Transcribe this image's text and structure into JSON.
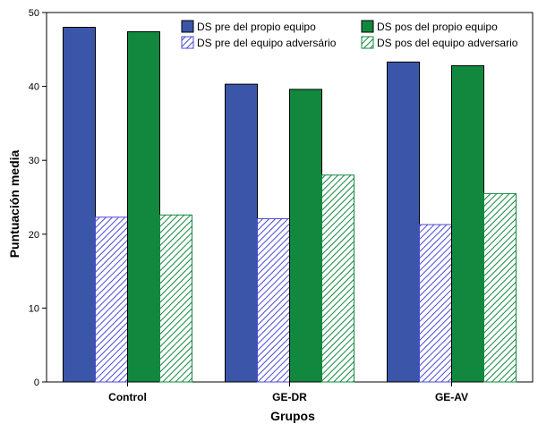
{
  "chart_data": {
    "type": "bar",
    "title": "",
    "xlabel": "Grupos",
    "ylabel": "Puntuación media",
    "ylim": [
      0,
      50
    ],
    "yticks": [
      0,
      10,
      20,
      30,
      40,
      50
    ],
    "grid": false,
    "legend_position": "top-right",
    "categories": [
      "Control",
      "GE-DR",
      "GE-AV"
    ],
    "series": [
      {
        "name": "DS pre del propio equipo",
        "values": [
          48.0,
          40.3,
          43.3
        ],
        "color": "#3b55a8",
        "pattern": "solid"
      },
      {
        "name": "DS pre del equipo adversário",
        "values": [
          22.3,
          22.1,
          21.3
        ],
        "color": "#3b55a8",
        "pattern": "hatched"
      },
      {
        "name": "DS pos del propio equipo",
        "values": [
          47.4,
          39.6,
          42.8
        ],
        "color": "#12883e",
        "pattern": "solid"
      },
      {
        "name": "DS pos del equipo adversario",
        "values": [
          22.6,
          28.0,
          25.5
        ],
        "color": "#12883e",
        "pattern": "hatched"
      }
    ]
  }
}
